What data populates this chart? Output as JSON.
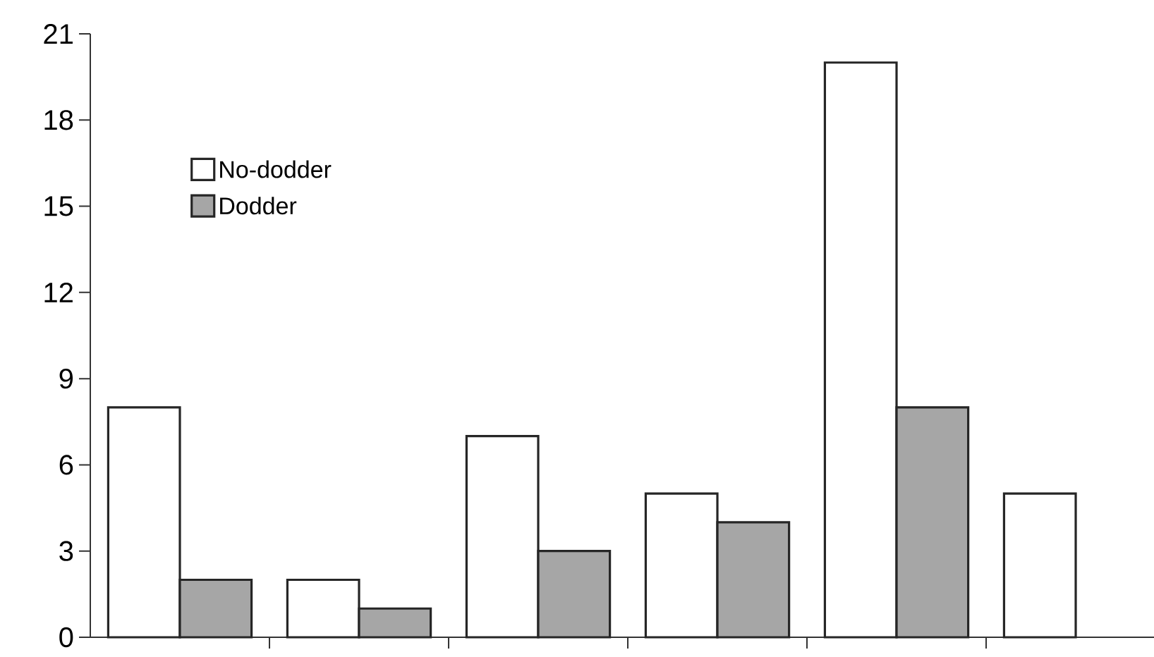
{
  "chart_data": {
    "type": "bar",
    "categories": [
      null,
      null,
      null,
      null,
      null,
      null
    ],
    "series": [
      {
        "name": "No-dodder",
        "color": "#ffffff",
        "values": [
          8,
          2,
          7,
          5,
          20,
          5
        ]
      },
      {
        "name": "Dodder",
        "color": "#a6a6a6",
        "values": [
          2,
          1,
          3,
          4,
          8,
          null
        ]
      }
    ],
    "ylim": [
      0,
      21
    ],
    "yticks": [
      0,
      3,
      6,
      9,
      12,
      15,
      18,
      21
    ],
    "tick_labels": "y",
    "grid": false,
    "legend": "top left"
  }
}
